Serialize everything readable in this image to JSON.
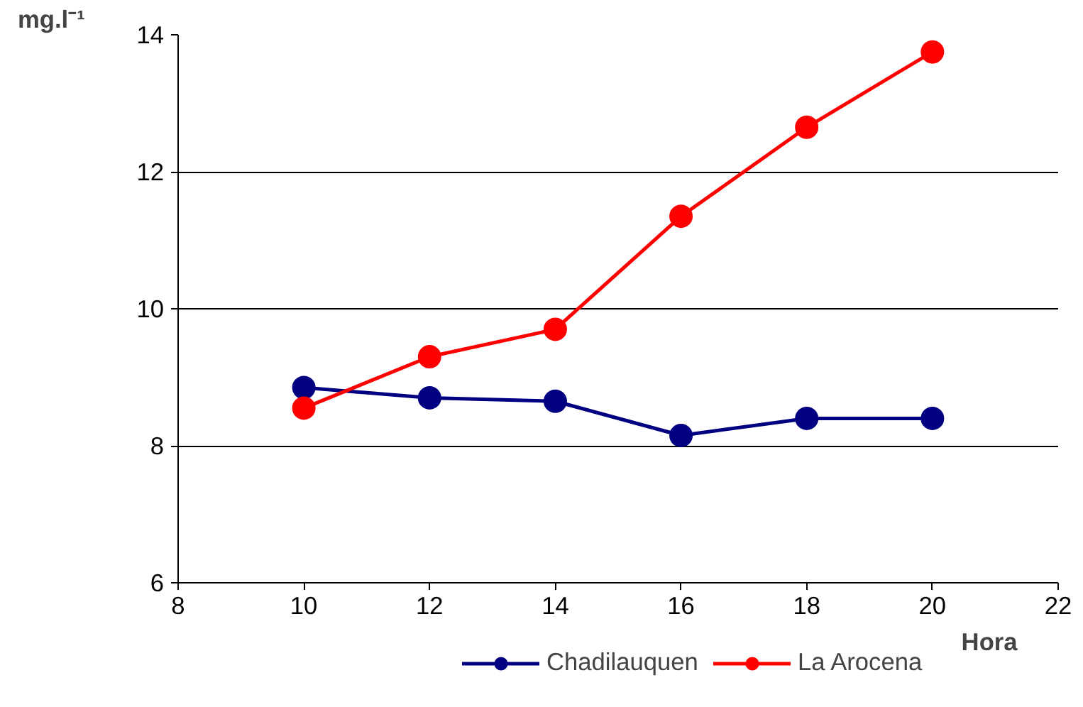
{
  "chart_data": {
    "type": "line",
    "xlabel": "Hora",
    "ylabel": "mg.l⁻¹",
    "x": [
      10,
      12,
      14,
      16,
      18,
      20
    ],
    "series": [
      {
        "name": "Chadilauquen",
        "color": "#000080",
        "values": [
          8.85,
          8.7,
          8.65,
          8.15,
          8.4,
          8.4
        ]
      },
      {
        "name": "La Arocena",
        "color": "#ff0000",
        "values": [
          8.55,
          9.3,
          9.7,
          11.35,
          12.65,
          13.75
        ]
      }
    ],
    "xlim": [
      8,
      22
    ],
    "xticks": [
      8,
      10,
      12,
      14,
      16,
      18,
      20,
      22
    ],
    "ylim": [
      6,
      14
    ],
    "yticks": [
      6,
      8,
      10,
      12,
      14
    ],
    "grid": "y",
    "legend": "bottom",
    "marker": "circle",
    "line_style": "solid"
  }
}
